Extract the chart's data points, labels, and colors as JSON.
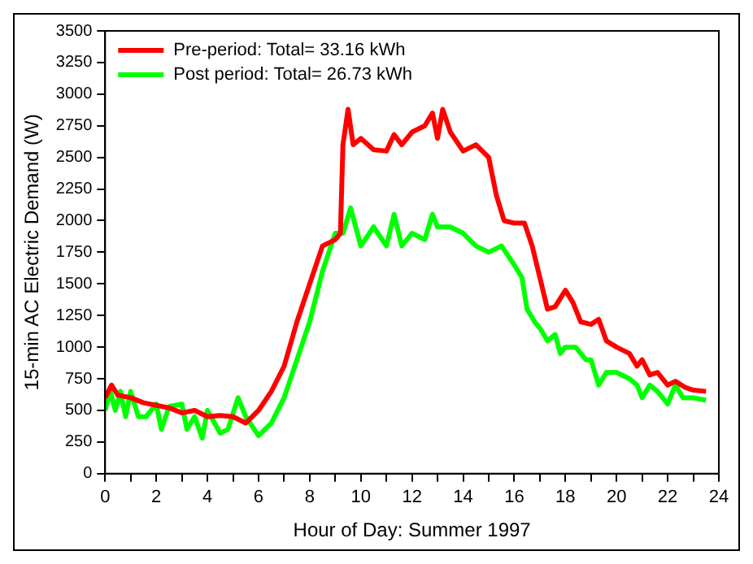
{
  "chart_data": {
    "type": "line",
    "xlabel": "Hour of Day: Summer 1997",
    "ylabel": "15-min AC Electric Demand (W)",
    "xlim": [
      0,
      24
    ],
    "ylim": [
      0,
      3500
    ],
    "xticks": [
      0,
      {
        "value": 1,
        "label": null
      },
      2,
      {
        "value": 3,
        "label": null
      },
      4,
      {
        "value": 5,
        "label": null
      },
      6,
      {
        "value": 7,
        "label": null
      },
      8,
      {
        "value": 9,
        "label": null
      },
      10,
      {
        "value": 11,
        "label": null
      },
      12,
      {
        "value": 13,
        "label": null
      },
      14,
      {
        "value": 15,
        "label": null
      },
      16,
      {
        "value": 17,
        "label": null
      },
      18,
      {
        "value": 19,
        "label": null
      },
      20,
      {
        "value": 21,
        "label": null
      },
      22,
      {
        "value": 23,
        "label": null
      },
      24
    ],
    "yticks": [
      0,
      250,
      500,
      750,
      1000,
      1250,
      1500,
      1750,
      2000,
      2250,
      2500,
      2750,
      3000,
      3250,
      3500
    ],
    "legend": "top left",
    "grid": false,
    "marker": "none",
    "line_style": "solid",
    "series": [
      {
        "name": "Pre-period: Total= 33.16 kWh",
        "color": "#ff0000",
        "x": [
          0,
          0.25,
          0.5,
          1,
          1.5,
          2,
          2.5,
          3,
          3.5,
          4,
          4.5,
          5,
          5.5,
          6,
          6.5,
          7,
          7.5,
          8,
          8.5,
          9,
          9.2,
          9.3,
          9.5,
          9.7,
          10,
          10.5,
          11,
          11.3,
          11.6,
          12,
          12.5,
          12.8,
          13,
          13.2,
          13.5,
          14,
          14.5,
          15,
          15.3,
          15.6,
          16,
          16.4,
          16.7,
          17,
          17.3,
          17.6,
          18,
          18.3,
          18.6,
          19,
          19.3,
          19.6,
          20,
          20.5,
          20.8,
          21,
          21.3,
          21.6,
          22,
          22.3,
          22.7,
          23,
          23.5
        ],
        "values": [
          600,
          700,
          620,
          600,
          560,
          540,
          520,
          480,
          500,
          450,
          460,
          450,
          400,
          500,
          650,
          850,
          1200,
          1500,
          1800,
          1850,
          1900,
          2600,
          2880,
          2600,
          2650,
          2560,
          2550,
          2680,
          2600,
          2700,
          2750,
          2850,
          2650,
          2880,
          2700,
          2550,
          2600,
          2500,
          2200,
          2000,
          1980,
          1980,
          1800,
          1550,
          1300,
          1320,
          1450,
          1350,
          1200,
          1180,
          1220,
          1050,
          1000,
          950,
          850,
          900,
          780,
          800,
          700,
          730,
          680,
          660,
          650
        ]
      },
      {
        "name": "Post period: Total= 26.73 kWh",
        "color": "#00ff00",
        "x": [
          0,
          0.2,
          0.4,
          0.6,
          0.8,
          1,
          1.3,
          1.6,
          2,
          2.2,
          2.5,
          3,
          3.2,
          3.5,
          3.8,
          4,
          4.5,
          4.8,
          5.2,
          5.5,
          6,
          6.5,
          7,
          7.5,
          8,
          8.5,
          9,
          9.3,
          9.6,
          10,
          10.5,
          11,
          11.3,
          11.6,
          12,
          12.5,
          12.8,
          13,
          13.5,
          14,
          14.5,
          15,
          15.5,
          16,
          16.3,
          16.5,
          16.8,
          17,
          17.3,
          17.6,
          17.8,
          18,
          18.4,
          18.8,
          19,
          19.3,
          19.6,
          20,
          20.5,
          20.8,
          21,
          21.3,
          21.6,
          22,
          22.3,
          22.6,
          23,
          23.5
        ],
        "values": [
          500,
          650,
          500,
          650,
          450,
          650,
          450,
          450,
          550,
          350,
          530,
          550,
          350,
          450,
          280,
          500,
          320,
          350,
          600,
          450,
          300,
          400,
          600,
          900,
          1200,
          1600,
          1900,
          1900,
          2100,
          1800,
          1950,
          1800,
          2050,
          1800,
          1900,
          1850,
          2050,
          1950,
          1950,
          1900,
          1800,
          1750,
          1800,
          1650,
          1550,
          1300,
          1200,
          1150,
          1050,
          1100,
          950,
          1000,
          1000,
          900,
          900,
          700,
          800,
          800,
          750,
          700,
          600,
          700,
          650,
          550,
          700,
          600,
          600,
          580
        ]
      }
    ]
  }
}
